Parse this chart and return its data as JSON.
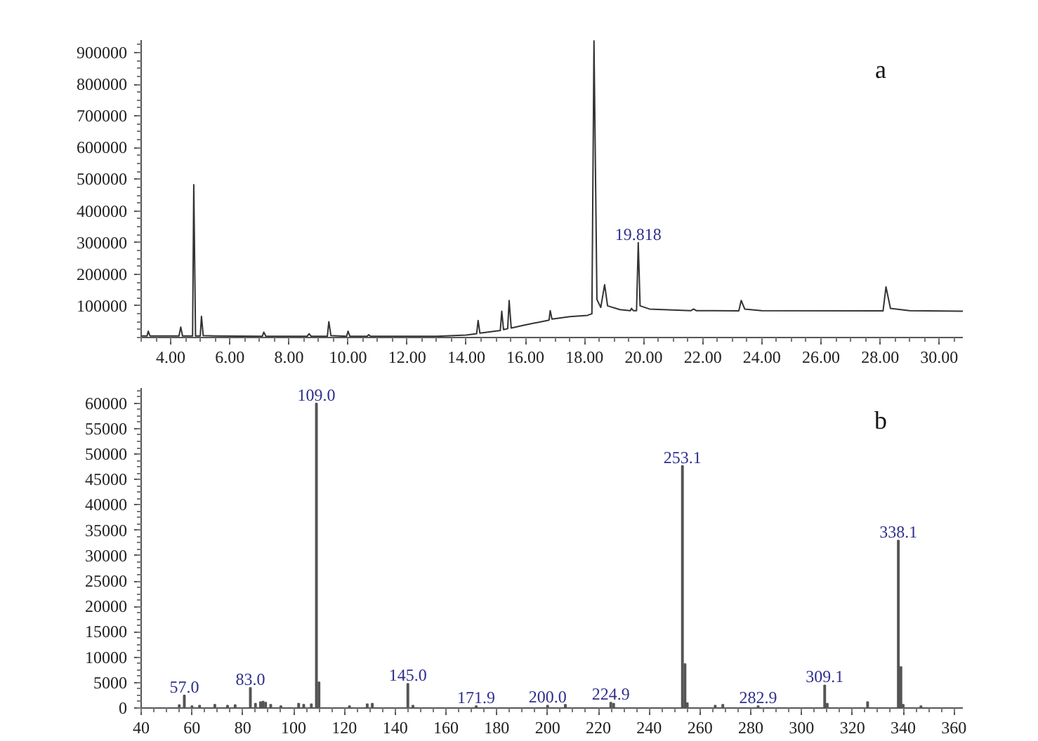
{
  "chart_data": [
    {
      "type": "line",
      "color": "#333333",
      "marker": "none",
      "line_style": "solid",
      "grid": false,
      "xlim": [
        3.0,
        30.8
      ],
      "ylim": [
        0,
        940000
      ],
      "xticks": [
        {
          "value": 4,
          "label": "4.00"
        },
        {
          "value": 6,
          "label": "6.00"
        },
        {
          "value": 8,
          "label": "8.00"
        },
        {
          "value": 10,
          "label": "10.00"
        },
        {
          "value": 12,
          "label": "12.00"
        },
        {
          "value": 14,
          "label": "14.00"
        },
        {
          "value": 16,
          "label": "16.00"
        },
        {
          "value": 18,
          "label": "18.00"
        },
        {
          "value": 20,
          "label": "20.00"
        },
        {
          "value": 22,
          "label": "22.00"
        },
        {
          "value": 24,
          "label": "24.00"
        },
        {
          "value": 26,
          "label": "26.00"
        },
        {
          "value": 28,
          "label": "28.00"
        },
        {
          "value": 30,
          "label": "30.00"
        }
      ],
      "yticks": [
        100000,
        200000,
        300000,
        400000,
        500000,
        600000,
        700000,
        800000,
        900000
      ],
      "x": [
        3.0,
        3.2,
        3.24,
        3.3,
        4.28,
        4.34,
        4.4,
        4.74,
        4.78,
        4.84,
        5.0,
        5.04,
        5.1,
        5.5,
        7.1,
        7.15,
        7.22,
        8.62,
        8.68,
        8.75,
        9.3,
        9.35,
        9.42,
        9.95,
        10.0,
        10.06,
        10.65,
        10.7,
        10.76,
        13.0,
        14.0,
        14.35,
        14.4,
        14.46,
        15.15,
        15.2,
        15.26,
        15.4,
        15.45,
        15.52,
        16.0,
        16.8,
        16.84,
        16.9,
        17.5,
        18.1,
        18.25,
        18.32,
        18.42,
        18.55,
        18.68,
        18.78,
        19.2,
        19.55,
        19.59,
        19.65,
        19.76,
        19.818,
        19.88,
        20.2,
        21.6,
        21.69,
        21.78,
        23.22,
        23.3,
        23.42,
        24.0,
        28.1,
        28.2,
        28.35,
        29.0,
        30.8
      ],
      "values": [
        5000,
        5000,
        20000,
        5000,
        5000,
        33000,
        5000,
        5000,
        483000,
        5000,
        5000,
        67000,
        6000,
        5000,
        4000,
        17000,
        4000,
        4000,
        12000,
        4000,
        4000,
        50000,
        6000,
        4000,
        20000,
        4000,
        4000,
        9000,
        4000,
        4000,
        8000,
        12000,
        54000,
        14000,
        22000,
        83000,
        25000,
        28000,
        117000,
        30000,
        40000,
        55000,
        85000,
        58000,
        66000,
        70000,
        75000,
        937000,
        120000,
        95000,
        167000,
        100000,
        88000,
        85000,
        92000,
        85000,
        85000,
        300000,
        100000,
        90000,
        85000,
        90000,
        85000,
        84000,
        117000,
        90000,
        85000,
        84000,
        160000,
        92000,
        85000,
        83000
      ],
      "annotations": [
        {
          "text": "19.818",
          "x": 19.818,
          "y": 300000
        },
        "a"
      ]
    },
    {
      "type": "bar",
      "color": "#555555",
      "grid": false,
      "xlim": [
        40,
        363.5
      ],
      "ylim": [
        0,
        63000
      ],
      "xticks": [
        40,
        60,
        80,
        100,
        120,
        140,
        160,
        180,
        200,
        220,
        240,
        260,
        280,
        300,
        320,
        340,
        360
      ],
      "yticks": [
        0,
        5000,
        10000,
        15000,
        20000,
        25000,
        30000,
        35000,
        40000,
        45000,
        50000,
        55000,
        60000
      ],
      "x": [
        55,
        57.0,
        60,
        63,
        69,
        74,
        77,
        83.0,
        85,
        87,
        88,
        89,
        91,
        95,
        102,
        104,
        107,
        109.0,
        110.0,
        122,
        129,
        131,
        145.0,
        147,
        171.9,
        200.0,
        207,
        224.9,
        226,
        253.1,
        254.1,
        255,
        266,
        269,
        282.9,
        309.1,
        310.1,
        326,
        338.1,
        339.1,
        340,
        347
      ],
      "values": [
        600,
        2500,
        400,
        500,
        700,
        500,
        600,
        4000,
        900,
        1200,
        1300,
        1100,
        700,
        400,
        900,
        700,
        800,
        60000,
        5100,
        400,
        800,
        900,
        4800,
        500,
        400,
        500,
        700,
        1100,
        900,
        47700,
        8700,
        1000,
        500,
        700,
        400,
        4500,
        900,
        1200,
        33000,
        8100,
        700,
        400
      ],
      "annotations": [
        {
          "text": "57.0",
          "x": 57.0,
          "y": 2500
        },
        {
          "text": "83.0",
          "x": 83.0,
          "y": 4000
        },
        {
          "text": "109.0",
          "x": 109.0,
          "y": 60000
        },
        {
          "text": "145.0",
          "x": 145.0,
          "y": 4800
        },
        {
          "text": "171.9",
          "x": 171.9,
          "y": 400
        },
        {
          "text": "200.0",
          "x": 200.0,
          "y": 500
        },
        {
          "text": "224.9",
          "x": 224.9,
          "y": 1100
        },
        {
          "text": "253.1",
          "x": 253.1,
          "y": 47700
        },
        {
          "text": "282.9",
          "x": 282.9,
          "y": 400
        },
        {
          "text": "309.1",
          "x": 309.1,
          "y": 4500
        },
        {
          "text": "338.1",
          "x": 338.1,
          "y": 33000
        },
        "b"
      ]
    }
  ]
}
